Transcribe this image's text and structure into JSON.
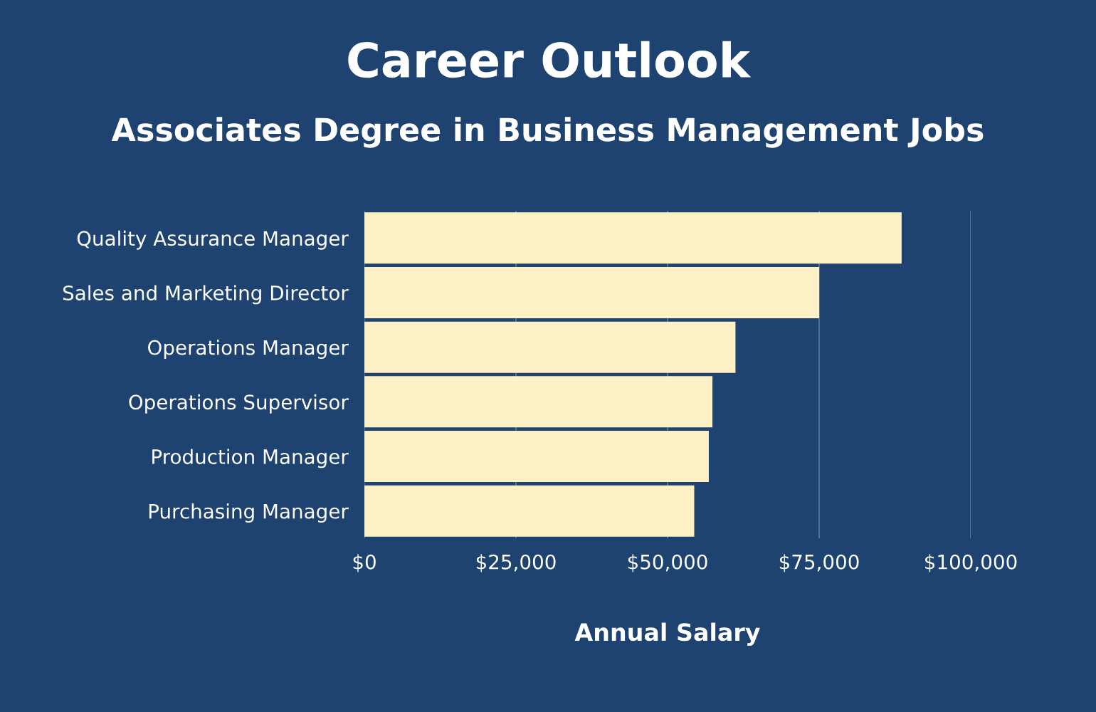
{
  "chart_data": {
    "type": "bar",
    "orientation": "horizontal",
    "title": "Career Outlook",
    "subtitle": "Associates Degree in Business Management Jobs",
    "xlabel": "Annual Salary",
    "categories": [
      "Quality Assurance Manager",
      "Sales and Marketing Director",
      "Operations Manager",
      "Operations Supervisor",
      "Production Manager",
      "Purchasing Manager"
    ],
    "values": [
      88600,
      75000,
      61200,
      57400,
      56800,
      54400
    ],
    "color": "#fdf0c4",
    "xlim": [
      0,
      100000
    ],
    "xticks": [
      {
        "value": 0,
        "label": "$0"
      },
      {
        "value": 25000,
        "label": "$25,000"
      },
      {
        "value": 50000,
        "label": "$50,000"
      },
      {
        "value": 75000,
        "label": "$75,000"
      },
      {
        "value": 100000,
        "label": "$100,000"
      }
    ],
    "grid": "x"
  }
}
